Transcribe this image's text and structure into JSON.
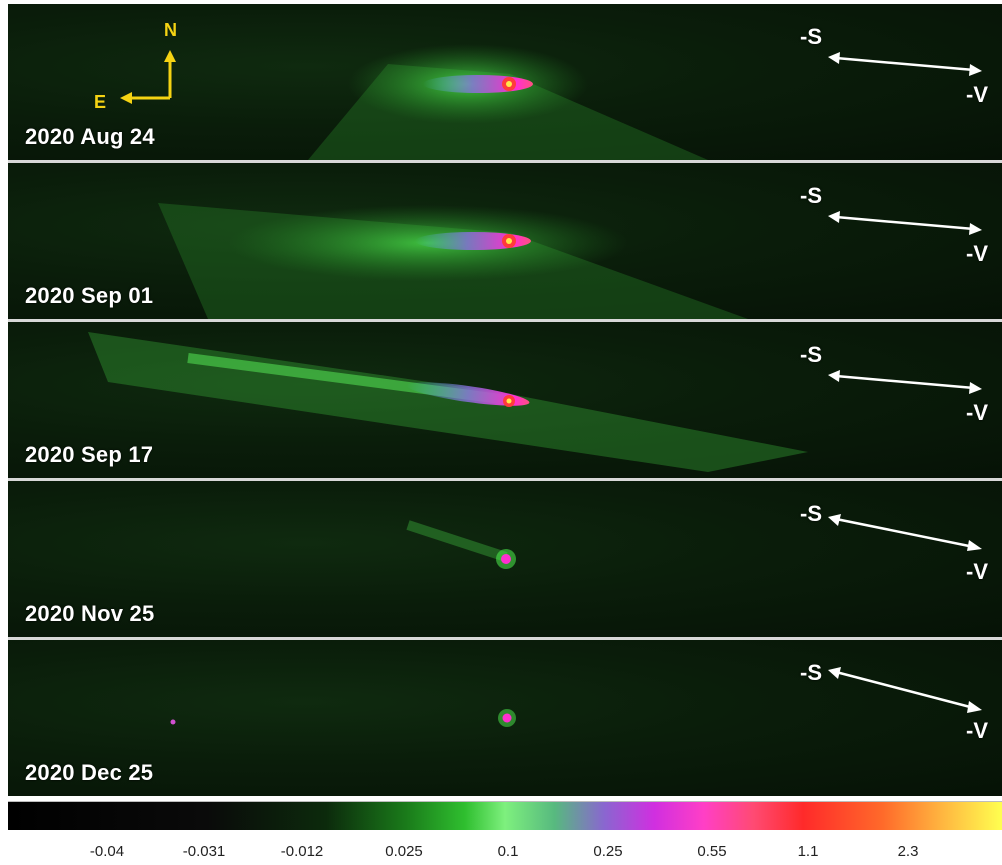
{
  "panels": [
    {
      "date": "2020 Aug 24"
    },
    {
      "date": "2020 Sep 01"
    },
    {
      "date": "2020 Sep 17"
    },
    {
      "date": "2020 Nov 25"
    },
    {
      "date": "2020 Dec 25"
    }
  ],
  "direction_labels": {
    "sun": "-S",
    "velocity": "-V"
  },
  "compass": {
    "north": "N",
    "east": "E",
    "color": "#f5d313"
  },
  "colorbar": {
    "ticks": [
      "-0.04",
      "-0.031",
      "-0.012",
      "0.025",
      "0.1",
      "0.25",
      "0.55",
      "1.1",
      "2.3"
    ]
  },
  "colors": {
    "background_green": "#0a1d0a",
    "tail_green": "#43e043",
    "nucleus_magenta": "#ff2fd0",
    "core_yellow": "#ffe94a",
    "arrow_white": "#ffffff"
  }
}
